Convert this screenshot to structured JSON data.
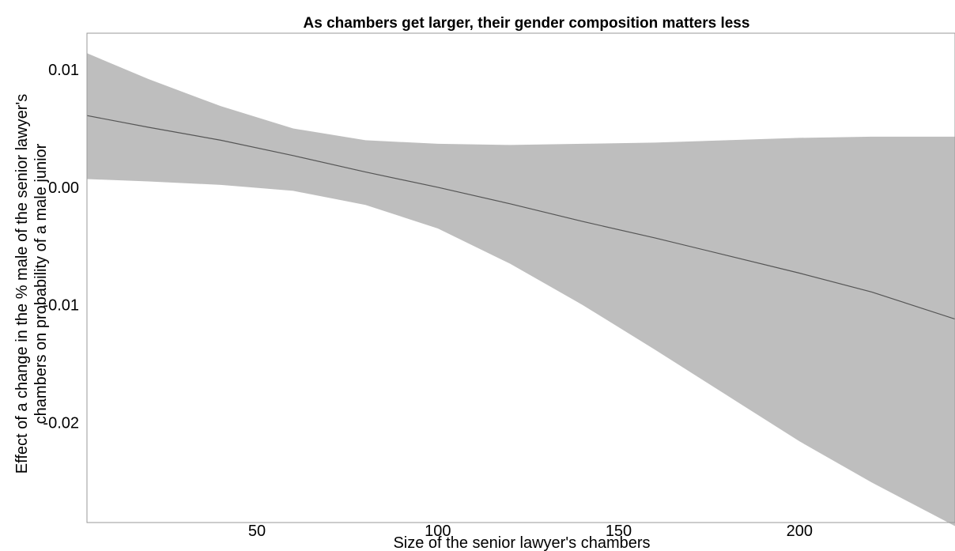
{
  "chart_data": {
    "type": "line",
    "title": "As chambers get larger, their gender composition matters less",
    "xlabel": "Size of the senior lawyer's chambers",
    "ylabel_lines": [
      "Effect of a change in the % male of the senior lawyer's",
      "chambers on probability of a male junior"
    ],
    "xlim": [
      3,
      243
    ],
    "ylim": [
      -0.0285,
      0.0131
    ],
    "x_ticks": [
      50,
      100,
      150,
      200
    ],
    "x_tick_labels": [
      "50",
      "100",
      "150",
      "200"
    ],
    "y_ticks": [
      0.01,
      0.0,
      -0.01,
      -0.02
    ],
    "y_tick_labels": [
      "0.01",
      "0.00",
      "-0.01",
      "-0.02"
    ],
    "grid": false,
    "line_color": "#555555",
    "band_color": "#bebebe",
    "series": [
      {
        "x": [
          3,
          20,
          40,
          60,
          80,
          100,
          120,
          140,
          160,
          180,
          200,
          220,
          243
        ],
        "y": [
          0.0061,
          0.0051,
          0.004,
          0.0027,
          0.0013,
          0.0,
          -0.0014,
          -0.0029,
          -0.0043,
          -0.0058,
          -0.0073,
          -0.0089,
          -0.0112
        ],
        "lower": [
          0.0007,
          0.0005,
          0.0002,
          -0.0003,
          -0.0015,
          -0.0035,
          -0.0065,
          -0.01,
          -0.0138,
          -0.0177,
          -0.0216,
          -0.0251,
          -0.0288
        ],
        "upper": [
          0.0114,
          0.0092,
          0.0069,
          0.005,
          0.004,
          0.0037,
          0.0036,
          0.0037,
          0.0038,
          0.004,
          0.0042,
          0.0043,
          0.0043
        ]
      }
    ]
  }
}
